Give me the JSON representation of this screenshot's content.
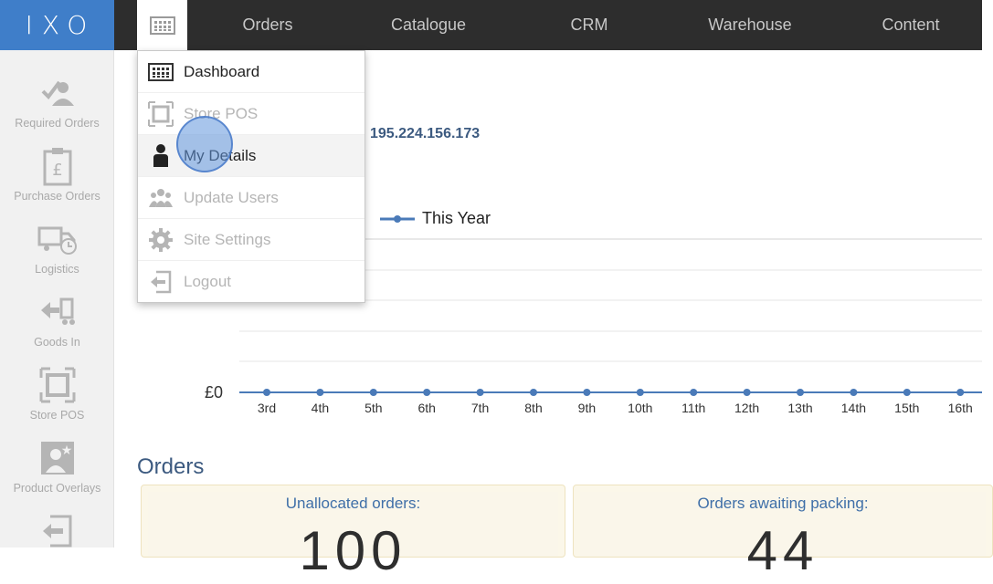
{
  "app": {
    "logo": "IXO",
    "menu_toggle_icon": "grid-icon"
  },
  "topnav": {
    "items": [
      "Orders",
      "Catalogue",
      "CRM",
      "Warehouse",
      "Content"
    ]
  },
  "sidebar": {
    "items": [
      {
        "label": "Required Orders",
        "icon": "required-orders-icon"
      },
      {
        "label": "Purchase Orders",
        "icon": "purchase-orders-icon"
      },
      {
        "label": "Logistics",
        "icon": "truck-icon"
      },
      {
        "label": "Goods In",
        "icon": "goods-in-icon"
      },
      {
        "label": "Store POS",
        "icon": "store-pos-icon"
      },
      {
        "label": "Product Overlays",
        "icon": "product-overlays-icon"
      },
      {
        "label": "",
        "icon": "logout-icon"
      }
    ]
  },
  "dropdown": {
    "items": [
      {
        "label": "Dashboard",
        "icon": "dashboard-icon",
        "state": "active"
      },
      {
        "label": "Store POS",
        "icon": "store-pos-icon",
        "state": "disabled"
      },
      {
        "label": "My Details",
        "icon": "person-icon",
        "state": "hover"
      },
      {
        "label": "Update Users",
        "icon": "users-icon",
        "state": "disabled"
      },
      {
        "label": "Site Settings",
        "icon": "gear-icon",
        "state": "disabled"
      },
      {
        "label": "Logout",
        "icon": "logout-icon",
        "state": "disabled"
      }
    ]
  },
  "main": {
    "ip_address": "195.224.156.173",
    "orders_title": "Orders",
    "cards": [
      {
        "label": "Unallocated orders:",
        "value": "100"
      },
      {
        "label": "Orders awaiting packing:",
        "value": "44"
      }
    ]
  },
  "chart_data": {
    "type": "line",
    "series": [
      {
        "name": "This Year",
        "values": [
          0,
          0,
          0,
          0,
          0,
          0,
          0,
          0,
          0,
          0,
          0,
          0,
          0,
          0
        ],
        "color": "#4a7ab8"
      }
    ],
    "categories": [
      "3rd",
      "4th",
      "5th",
      "6th",
      "7th",
      "8th",
      "9th",
      "10th",
      "11th",
      "12th",
      "13th",
      "14th",
      "15th",
      "16th"
    ],
    "y_tick_labels": [
      "£0"
    ],
    "legend": "top"
  },
  "colors": {
    "accent": "#3f7ec9",
    "topbar": "#2d2d2d",
    "heading": "#3c5a80"
  }
}
